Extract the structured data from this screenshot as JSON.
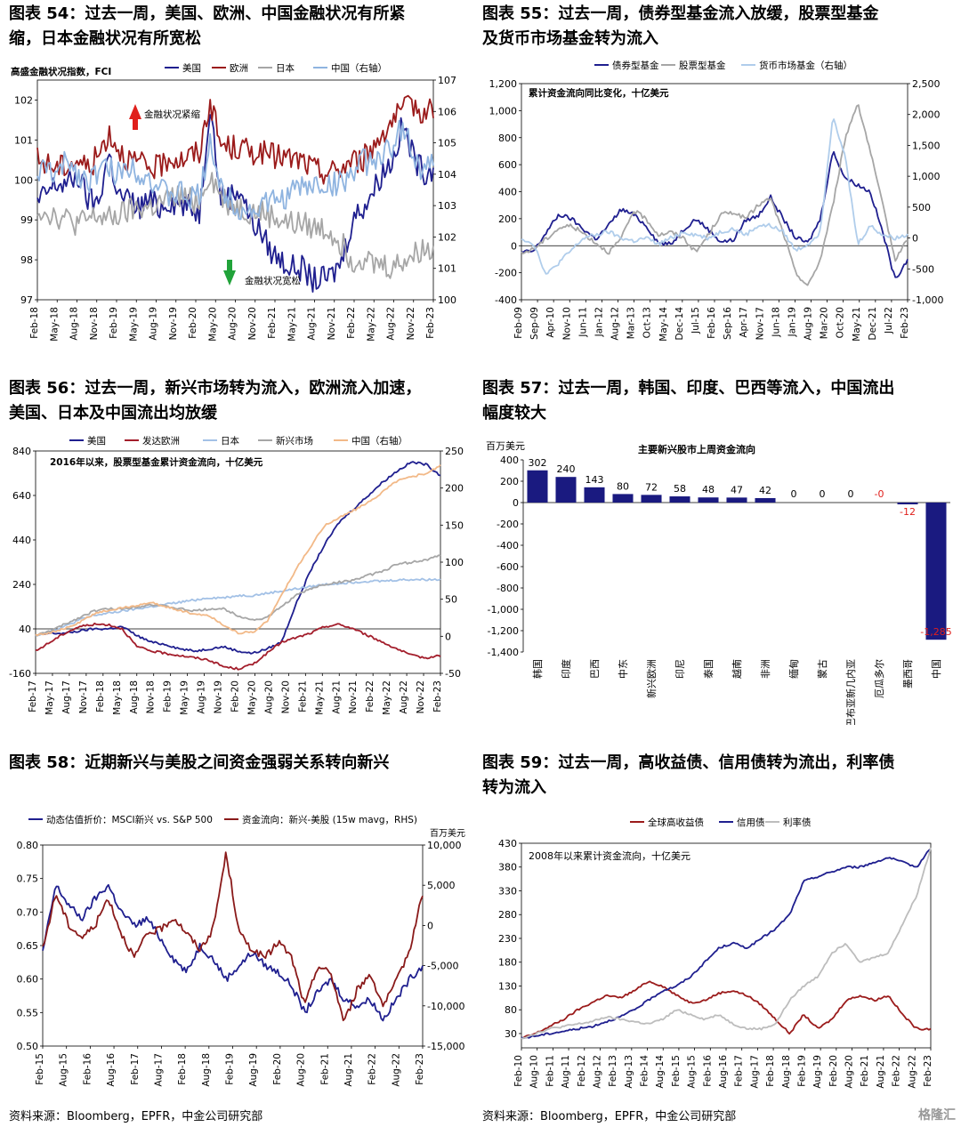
{
  "panels": [
    {
      "title_line1": "图表 54：过去一周，美国、欧洲、中国金融状况有所紧",
      "title_line2": "缩，日本金融状况有所宽松"
    },
    {
      "title_line1": "图表 55：过去一周，债券型基金流入放缓，股票型基金",
      "title_line2": "及货币市场基金转为流入"
    },
    {
      "title_line1": "图表 56：过去一周，新兴市场转为流入，欧洲流入加速，",
      "title_line2": "美国、日本及中国流出均放缓"
    },
    {
      "title_line1": "图表 57：过去一周，韩国、印度、巴西等流入，中国流出",
      "title_line2": "幅度较大"
    },
    {
      "title_line1": "图表 58：近期新兴与美股之间资金强弱关系转向新兴",
      "title_line2": ""
    },
    {
      "title_line1": "图表 59：过去一周，高收益债、信用债转为流出，利率债",
      "title_line2": "转为流入"
    }
  ],
  "sources": {
    "left": "资料来源：Bloomberg，EPFR，中金公司研究部",
    "right": "资料来源：Bloomberg，EPFR，中金公司研究部"
  },
  "watermark": "格隆汇",
  "chart_data": [
    {
      "id": "c54",
      "type": "line",
      "subtitle": "高盛金融状况指数，FCI",
      "annotations": [
        {
          "text": "金融状况紧缩",
          "arrow": "up",
          "color": "#e0201c"
        },
        {
          "text": "金融状况宽松",
          "arrow": "down",
          "color": "#21a33a"
        }
      ],
      "x_ticks": [
        "Feb-18",
        "May-18",
        "Aug-18",
        "Nov-18",
        "Feb-19",
        "May-19",
        "Aug-19",
        "Nov-19",
        "Feb-20",
        "May-20",
        "Aug-20",
        "Nov-20",
        "Feb-21",
        "May-21",
        "Aug-21",
        "Nov-21",
        "Feb-22",
        "May-22",
        "Aug-22",
        "Nov-22",
        "Feb-23"
      ],
      "ylim": [
        97,
        102.5
      ],
      "y_ticks": [
        97,
        98,
        99,
        100,
        101,
        102
      ],
      "y2lim": [
        100,
        107
      ],
      "y2_ticks": [
        100,
        101,
        102,
        103,
        104,
        105,
        106,
        107
      ],
      "grid": false,
      "legend": "top",
      "series": [
        {
          "name": "美国",
          "color": "#1f1f8f",
          "axis": "left",
          "values": [
            99.4,
            99.7,
            99.9,
            99.9,
            100.1,
            99.5,
            99.4,
            100.7,
            99.6,
            99.5,
            99.3,
            99.5,
            99.3,
            99.5,
            99.4,
            99.3,
            99.2,
            102.0,
            99.6,
            99.6,
            99.8,
            99.0,
            98.7,
            98.2,
            98.0,
            97.8,
            97.8,
            97.5,
            97.5,
            97.6,
            98.0,
            99.0,
            99.3,
            99.7,
            100.2,
            100.5,
            101.4,
            100.6,
            100.2,
            100.3
          ]
        },
        {
          "name": "欧洲",
          "color": "#9b1b1b",
          "axis": "left",
          "values": [
            100.5,
            100.4,
            100.3,
            100.4,
            100.5,
            100.3,
            100.6,
            101.2,
            100.8,
            100.5,
            100.4,
            100.3,
            100.3,
            100.6,
            100.5,
            100.6,
            100.7,
            102.0,
            100.9,
            100.8,
            100.8,
            100.7,
            100.7,
            100.6,
            100.6,
            100.5,
            100.5,
            100.3,
            100.2,
            100.2,
            100.3,
            100.5,
            100.5,
            100.8,
            101.2,
            101.5,
            101.7,
            101.9,
            101.7,
            101.8
          ]
        },
        {
          "name": "日本",
          "color": "#a6a6a6",
          "axis": "left",
          "values": [
            99.3,
            99.2,
            99.1,
            99.0,
            98.9,
            99.0,
            99.1,
            99.0,
            99.1,
            99.2,
            99.3,
            99.3,
            99.4,
            99.5,
            99.6,
            99.5,
            99.5,
            100.2,
            99.6,
            99.4,
            99.3,
            99.2,
            99.2,
            99.1,
            99.0,
            98.9,
            98.9,
            98.8,
            98.8,
            98.7,
            98.4,
            98.0,
            98.1,
            97.9,
            97.9,
            97.8,
            98.0,
            98.1,
            98.3,
            98.2
          ]
        },
        {
          "name": "中国（右轴）",
          "color": "#8fb4e0",
          "axis": "right",
          "values": [
            104.0,
            104.2,
            103.9,
            104.5,
            104.0,
            103.8,
            104.1,
            104.2,
            104.0,
            104.3,
            104.1,
            103.9,
            103.5,
            103.3,
            103.4,
            103.2,
            103.3,
            105.2,
            103.5,
            103.2,
            102.9,
            102.8,
            103.0,
            103.1,
            103.2,
            103.4,
            103.6,
            103.6,
            103.7,
            103.6,
            103.8,
            104.0,
            104.4,
            104.3,
            104.8,
            104.6,
            105.7,
            104.6,
            104.0,
            104.4
          ]
        }
      ]
    },
    {
      "id": "c55",
      "type": "line",
      "subtitle": "累计资金流向同比变化，十亿美元",
      "x_ticks": [
        "Feb-09",
        "Sep-09",
        "Apr-10",
        "Nov-10",
        "Jun-11",
        "Jan-12",
        "Aug-12",
        "Mar-13",
        "Oct-13",
        "May-14",
        "Dec-14",
        "Jul-15",
        "Feb-16",
        "Sep-16",
        "Apr-17",
        "Nov-17",
        "Jun-18",
        "Jan-19",
        "Aug-19",
        "Mar-20",
        "Oct-20",
        "May-21",
        "Dec-21",
        "Jul-22",
        "Feb-23"
      ],
      "ylim": [
        -400,
        1200
      ],
      "y_ticks": [
        -400,
        -200,
        0,
        200,
        400,
        600,
        800,
        1000,
        1200
      ],
      "y2lim": [
        -1000,
        2500
      ],
      "y2_ticks": [
        -1000,
        -500,
        0,
        500,
        1000,
        1500,
        2000,
        2500
      ],
      "grid": false,
      "legend": "top",
      "series": [
        {
          "name": "债券型基金",
          "color": "#1f1f8f",
          "axis": "left",
          "values": [
            -50,
            -40,
            100,
            230,
            200,
            120,
            50,
            150,
            270,
            230,
            150,
            20,
            10,
            120,
            200,
            120,
            30,
            40,
            190,
            220,
            360,
            200,
            60,
            20,
            200,
            700,
            500,
            450,
            400,
            100,
            -250,
            -100
          ]
        },
        {
          "name": "股票型基金",
          "color": "#a6a6a6",
          "axis": "left",
          "values": [
            -60,
            -20,
            50,
            130,
            150,
            90,
            20,
            -50,
            50,
            260,
            200,
            80,
            100,
            60,
            -50,
            80,
            230,
            250,
            200,
            300,
            350,
            100,
            -200,
            -300,
            -100,
            300,
            800,
            1060,
            700,
            300,
            -100,
            50
          ]
        },
        {
          "name": "货币市场基金（右轴）",
          "color": "#b0cdeb",
          "axis": "right",
          "values": [
            0,
            -100,
            -600,
            -400,
            -200,
            0,
            50,
            100,
            0,
            -50,
            0,
            -100,
            0,
            100,
            50,
            0,
            100,
            150,
            50,
            200,
            200,
            100,
            -200,
            -100,
            100,
            2000,
            1300,
            -100,
            200,
            50,
            0,
            50
          ]
        }
      ]
    },
    {
      "id": "c56",
      "type": "line",
      "subtitle": "2016年以来，股票型基金累计资金流向，十亿美元",
      "x_ticks": [
        "Feb-17",
        "May-17",
        "Aug-17",
        "Nov-17",
        "Feb-18",
        "May-18",
        "Aug-18",
        "Nov-18",
        "Feb-19",
        "May-19",
        "Aug-19",
        "Nov-19",
        "Feb-20",
        "May-20",
        "Aug-20",
        "Nov-20",
        "Feb-21",
        "May-21",
        "Aug-21",
        "Nov-21",
        "Feb-22",
        "May-22",
        "Aug-22",
        "Nov-22",
        "Feb-23"
      ],
      "ylim": [
        -160,
        840
      ],
      "y_ticks": [
        -160,
        40,
        240,
        440,
        640,
        840
      ],
      "y2lim": [
        -50,
        250
      ],
      "y2_ticks": [
        -50,
        0,
        50,
        100,
        150,
        200,
        250
      ],
      "grid": false,
      "legend": "top",
      "series": [
        {
          "name": "美国",
          "color": "#1f1f8f",
          "axis": "left",
          "values": [
            10,
            20,
            20,
            30,
            40,
            40,
            50,
            10,
            -20,
            -30,
            -50,
            -60,
            -50,
            -40,
            -60,
            -70,
            -50,
            -20,
            150,
            300,
            420,
            520,
            580,
            640,
            700,
            750,
            790,
            780,
            730
          ]
        },
        {
          "name": "发达欧洲",
          "color": "#a31d2b",
          "axis": "left",
          "values": [
            -60,
            -20,
            20,
            50,
            60,
            60,
            40,
            -40,
            -60,
            -70,
            -80,
            -90,
            -100,
            -130,
            -140,
            -120,
            -70,
            -20,
            0,
            20,
            50,
            60,
            40,
            10,
            -20,
            -50,
            -80,
            -90,
            -80
          ]
        },
        {
          "name": "日本",
          "color": "#a3c1e6",
          "axis": "left",
          "values": [
            10,
            30,
            50,
            80,
            100,
            110,
            120,
            130,
            140,
            150,
            160,
            170,
            180,
            180,
            190,
            190,
            200,
            210,
            220,
            230,
            240,
            245,
            250,
            255,
            255,
            260,
            262,
            262,
            262
          ]
        },
        {
          "name": "新兴市场",
          "color": "#a6a6a6",
          "axis": "left",
          "values": [
            10,
            30,
            60,
            90,
            120,
            130,
            130,
            140,
            150,
            140,
            130,
            120,
            130,
            130,
            100,
            80,
            90,
            140,
            190,
            220,
            240,
            250,
            260,
            280,
            300,
            330,
            340,
            350,
            370
          ]
        },
        {
          "name": "中国（右轴）",
          "color": "#f2b988",
          "axis": "right",
          "values": [
            2,
            5,
            10,
            18,
            30,
            35,
            38,
            42,
            45,
            40,
            35,
            30,
            28,
            15,
            5,
            5,
            20,
            55,
            90,
            120,
            150,
            160,
            170,
            180,
            195,
            210,
            215,
            220,
            230
          ]
        }
      ]
    },
    {
      "id": "c57",
      "type": "bar",
      "title": "主要新兴股市上周资金流向",
      "ylabel": "百万美元",
      "ylim": [
        -1400,
        400
      ],
      "y_ticks": [
        -1400,
        -1200,
        -1000,
        -800,
        -600,
        -400,
        -200,
        0,
        200,
        400
      ],
      "categories": [
        "韩国",
        "印度",
        "巴西",
        "中东",
        "新兴欧洲",
        "印尼",
        "泰国",
        "越南",
        "非洲",
        "缅甸",
        "蒙古",
        "巴布亚新几内亚",
        "厄瓜多尔",
        "墨西哥",
        "中国"
      ],
      "values": [
        302,
        240,
        143,
        80,
        72,
        58,
        48,
        47,
        42,
        0,
        0,
        0,
        0,
        -12,
        -1285
      ],
      "data_labels": [
        "302",
        "240",
        "143",
        "80",
        "72",
        "58",
        "48",
        "47",
        "42",
        "0",
        "0",
        "0",
        "-0",
        "-12",
        "-1,285"
      ],
      "color": "#1a1a80"
    },
    {
      "id": "c58",
      "type": "line",
      "x_ticks": [
        "Feb-15",
        "Aug-15",
        "Feb-16",
        "Aug-16",
        "Feb-17",
        "Aug-17",
        "Feb-18",
        "Aug-18",
        "Feb-19",
        "Aug-19",
        "Feb-20",
        "Aug-20",
        "Feb-21",
        "Aug-21",
        "Feb-22",
        "Aug-22",
        "Feb-23"
      ],
      "ylim": [
        0.5,
        0.8
      ],
      "y_ticks": [
        0.5,
        0.55,
        0.6,
        0.65,
        0.7,
        0.75,
        0.8
      ],
      "y2lim": [
        -15000,
        10000
      ],
      "y2_ticks": [
        -15000,
        -10000,
        -5000,
        0,
        5000,
        10000
      ],
      "y2label": "百万美元",
      "grid": false,
      "legend": "top",
      "series": [
        {
          "name": "动态估值折价：MSCI新兴 vs. S&P 500",
          "color": "#1f1f8f",
          "axis": "left",
          "values": [
            0.64,
            0.74,
            0.71,
            0.69,
            0.72,
            0.74,
            0.7,
            0.68,
            0.69,
            0.66,
            0.63,
            0.61,
            0.65,
            0.63,
            0.6,
            0.62,
            0.64,
            0.62,
            0.61,
            0.59,
            0.55,
            0.58,
            0.6,
            0.57,
            0.56,
            0.57,
            0.54,
            0.57,
            0.6,
            0.62
          ]
        },
        {
          "name": "资金流向：新兴-美股 (15w mavg，RHS)",
          "color": "#8a1a1a",
          "axis": "right",
          "values": [
            -3000,
            4000,
            0,
            -1500,
            0,
            3500,
            -1000,
            -4000,
            -1000,
            -500,
            1000,
            -1000,
            -3000,
            -500,
            9000,
            -1000,
            -3000,
            -4000,
            -2000,
            -4000,
            -10000,
            -5000,
            -6000,
            -12000,
            -8000,
            -6000,
            -10000,
            -7000,
            -3000,
            4000
          ]
        }
      ]
    },
    {
      "id": "c59",
      "type": "line",
      "subtitle": "2008年以来累计资金流向，十亿美元",
      "x_ticks": [
        "Feb-10",
        "Aug-10",
        "Feb-11",
        "Aug-11",
        "Feb-12",
        "Aug-12",
        "Feb-13",
        "Aug-13",
        "Feb-14",
        "Aug-14",
        "Feb-15",
        "Aug-15",
        "Feb-16",
        "Aug-16",
        "Feb-17",
        "Aug-17",
        "Feb-18",
        "Aug-18",
        "Feb-19",
        "Aug-19",
        "Feb-20",
        "Aug-20",
        "Feb-21",
        "Aug-21",
        "Feb-22",
        "Aug-22",
        "Feb-23"
      ],
      "ylim": [
        0,
        430
      ],
      "y_ticks": [
        30,
        80,
        130,
        180,
        230,
        280,
        330,
        380,
        430
      ],
      "grid": false,
      "legend": "top",
      "series": [
        {
          "name": "全球高收益债",
          "color": "#9b1b1b",
          "axis": "left",
          "values": [
            20,
            30,
            45,
            60,
            80,
            95,
            110,
            105,
            120,
            140,
            130,
            110,
            95,
            100,
            115,
            120,
            110,
            90,
            60,
            30,
            70,
            40,
            60,
            100,
            110,
            100,
            110,
            70,
            40,
            40
          ]
        },
        {
          "name": "信用债",
          "color": "#1f1f8f",
          "axis": "left",
          "values": [
            20,
            25,
            30,
            35,
            40,
            45,
            55,
            65,
            80,
            100,
            120,
            130,
            150,
            180,
            210,
            220,
            210,
            230,
            250,
            280,
            350,
            360,
            370,
            380,
            380,
            390,
            400,
            390,
            380,
            420
          ]
        },
        {
          "name": "利率债",
          "color": "#bdbdbd",
          "axis": "left",
          "values": [
            20,
            30,
            40,
            45,
            50,
            55,
            65,
            60,
            55,
            50,
            60,
            80,
            70,
            60,
            70,
            50,
            40,
            40,
            50,
            100,
            130,
            150,
            200,
            220,
            180,
            190,
            200,
            260,
            320,
            420
          ]
        }
      ]
    }
  ]
}
